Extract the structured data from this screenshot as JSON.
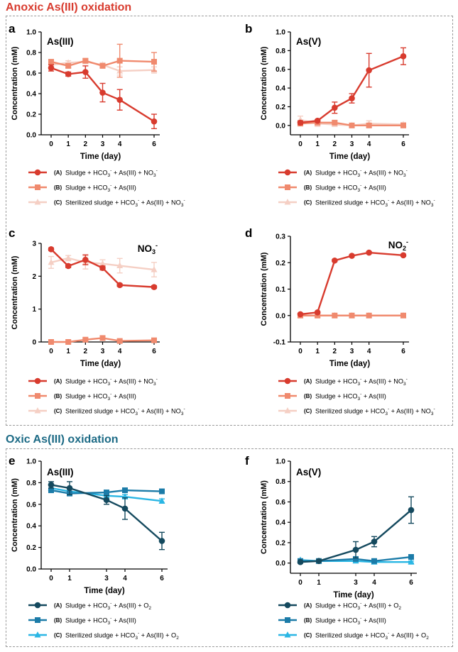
{
  "sections": [
    {
      "title": "Anoxic As(III) oxidation",
      "color": "#d83b2e"
    },
    {
      "title": "Oxic As(III) oxidation",
      "color": "#1c6a85"
    }
  ],
  "chart_data": [
    {
      "panel": "a",
      "label": "As(III)",
      "type": "line",
      "xlabel": "Time (day)",
      "ylabel": "Concentration (mM)",
      "x": [
        0,
        1,
        2,
        3,
        4,
        6
      ],
      "xticks": [
        "0",
        "1",
        "2",
        "3",
        "4",
        "6"
      ],
      "ylim": [
        0,
        1.0
      ],
      "yticks": [
        "0.0",
        "0.2",
        "0.4",
        "0.6",
        "0.8",
        "1.0"
      ],
      "ytick_values": [
        0,
        0.2,
        0.4,
        0.6,
        0.8,
        1.0
      ],
      "series": [
        {
          "name": "Sludge + HCO3- + As(III) + NO3-",
          "marker": "circle",
          "color": "#d83b2e",
          "values": [
            0.65,
            0.59,
            0.61,
            0.41,
            0.34,
            0.13
          ],
          "err": [
            0.03,
            0.02,
            0.06,
            0.09,
            0.1,
            0.07
          ]
        },
        {
          "name": "Sludge + HCO3- + As(III)",
          "marker": "square",
          "color": "#f08a6e",
          "values": [
            0.71,
            0.67,
            0.72,
            0.67,
            0.72,
            0.71
          ],
          "err": [
            0.02,
            0.02,
            0.02,
            0.02,
            0.16,
            0.09
          ]
        },
        {
          "name": "Sterilized sludge + HCO3- + As(III) + NO3-",
          "marker": "triangle",
          "color": "#f5cfc4",
          "values": [
            0.68,
            0.7,
            0.71,
            0.68,
            0.62,
            0.63
          ],
          "err": [
            0.02,
            0.02,
            0.02,
            0.02,
            0.04,
            0.03
          ]
        }
      ]
    },
    {
      "panel": "b",
      "label": "As(V)",
      "type": "line",
      "xlabel": "Time (day)",
      "ylabel": "Concentration (mM)",
      "x": [
        0,
        1,
        2,
        3,
        4,
        6
      ],
      "xticks": [
        "0",
        "1",
        "2",
        "3",
        "4",
        "6"
      ],
      "ylim": [
        -0.1,
        1.0
      ],
      "yticks": [
        "0.0",
        "0.2",
        "0.4",
        "0.6",
        "0.8",
        "1.0"
      ],
      "ytick_values": [
        0,
        0.2,
        0.4,
        0.6,
        0.8,
        1.0
      ],
      "series": [
        {
          "name": "Sludge + HCO3- + As(III) + NO3-",
          "marker": "circle",
          "color": "#d83b2e",
          "values": [
            0.03,
            0.05,
            0.19,
            0.29,
            0.59,
            0.74
          ],
          "err": [
            0.02,
            0.01,
            0.06,
            0.05,
            0.18,
            0.09
          ]
        },
        {
          "name": "Sludge + HCO3- + As(III)",
          "marker": "square",
          "color": "#f08a6e",
          "values": [
            0.02,
            0.03,
            0.03,
            0.0,
            0.0,
            0.0
          ],
          "err": [
            0.02,
            0.02,
            0.02,
            0.01,
            0.02,
            0.02
          ]
        },
        {
          "name": "Sterilized sludge + HCO3- + As(III) + NO3-",
          "marker": "triangle",
          "color": "#f5cfc4",
          "values": [
            0.06,
            0.02,
            0.01,
            0.0,
            0.02,
            0.01
          ],
          "err": [
            0.04,
            0.03,
            0.02,
            0.02,
            0.03,
            0.02
          ]
        }
      ]
    },
    {
      "panel": "c",
      "label": "NO3-",
      "type": "line",
      "xlabel": "Time (day)",
      "ylabel": "Concentration (mM)",
      "x": [
        0,
        1,
        2,
        3,
        4,
        6
      ],
      "xticks": [
        "0",
        "1",
        "2",
        "3",
        "4",
        "6"
      ],
      "ylim": [
        0,
        3.0
      ],
      "yticks": [
        "0",
        "1",
        "2",
        "3"
      ],
      "ytick_values": [
        0,
        1,
        2,
        3
      ],
      "series": [
        {
          "name": "Sludge + HCO3- + As(III) + NO3-",
          "marker": "circle",
          "color": "#d83b2e",
          "values": [
            2.82,
            2.31,
            2.5,
            2.25,
            1.73,
            1.67
          ],
          "err": [
            0.04,
            0.05,
            0.15,
            0.06,
            0.04,
            0.04
          ]
        },
        {
          "name": "Sludge + HCO3- + As(III)",
          "marker": "square",
          "color": "#f08a6e",
          "values": [
            0.0,
            0.0,
            0.07,
            0.12,
            0.03,
            0.05
          ],
          "err": [
            0.02,
            0.02,
            0.04,
            0.06,
            0.03,
            0.03
          ]
        },
        {
          "name": "Sterilized sludge + HCO3- + As(III) + NO3-",
          "marker": "triangle",
          "color": "#f5cfc4",
          "values": [
            2.42,
            2.55,
            2.42,
            2.38,
            2.32,
            2.2
          ],
          "err": [
            0.18,
            0.08,
            0.2,
            0.12,
            0.22,
            0.22
          ]
        }
      ]
    },
    {
      "panel": "d",
      "label": "NO2-",
      "type": "line",
      "xlabel": "Time (day)",
      "ylabel": "Concentration (mM)",
      "x": [
        0,
        1,
        2,
        3,
        4,
        6
      ],
      "xticks": [
        "0",
        "1",
        "2",
        "3",
        "4",
        "6"
      ],
      "ylim": [
        -0.1,
        0.3
      ],
      "yticks": [
        "-0.1",
        "0.0",
        "0.1",
        "0.2",
        "0.3"
      ],
      "ytick_values": [
        -0.1,
        0,
        0.1,
        0.2,
        0.3
      ],
      "series": [
        {
          "name": "Sludge + HCO3- + As(III) + NO3-",
          "marker": "circle",
          "color": "#d83b2e",
          "values": [
            0.005,
            0.012,
            0.208,
            0.226,
            0.238,
            0.228
          ],
          "err": [
            0.003,
            0.003,
            0.004,
            0.004,
            0.004,
            0.004
          ]
        },
        {
          "name": "Sludge + HCO3- + As(III)",
          "marker": "square",
          "color": "#f08a6e",
          "values": [
            0.0,
            0.0,
            0.0,
            0.0,
            0.0,
            0.0
          ],
          "err": [
            0.002,
            0.002,
            0.002,
            0.002,
            0.002,
            0.002
          ]
        },
        {
          "name": "Sterilized sludge + HCO3- + As(III) + NO3-",
          "marker": "triangle",
          "color": "#f5cfc4",
          "values": [
            0.0,
            0.0,
            0.0,
            0.0,
            0.0,
            0.0
          ],
          "err": [
            0.002,
            0.002,
            0.002,
            0.002,
            0.002,
            0.002
          ]
        }
      ]
    },
    {
      "panel": "e",
      "label": "As(III)",
      "type": "line",
      "xlabel": "Time (day)",
      "ylabel": "Concentration (mM)",
      "x": [
        0,
        1,
        3,
        4,
        6
      ],
      "xticks": [
        "0",
        "1",
        "3",
        "4",
        "6"
      ],
      "ylim": [
        0,
        1.0
      ],
      "yticks": [
        "0.0",
        "0.2",
        "0.4",
        "0.6",
        "0.8",
        "1.0"
      ],
      "ytick_values": [
        0,
        0.2,
        0.4,
        0.6,
        0.8,
        1.0
      ],
      "series": [
        {
          "name": "Sludge + HCO3- + As(III) + O2",
          "marker": "circle",
          "color": "#14495e",
          "values": [
            0.78,
            0.75,
            0.64,
            0.56,
            0.26
          ],
          "err": [
            0.03,
            0.06,
            0.04,
            0.1,
            0.08
          ]
        },
        {
          "name": "Sludge + HCO3- + As(III)",
          "marker": "square",
          "color": "#1b7ba8",
          "values": [
            0.73,
            0.7,
            0.71,
            0.73,
            0.72
          ],
          "err": [
            0.02,
            0.02,
            0.02,
            0.02,
            0.02
          ]
        },
        {
          "name": "Sterilized sludge + HCO3- + As(III) + O2",
          "marker": "triangle",
          "color": "#2ab6e4",
          "values": [
            0.75,
            0.72,
            0.68,
            0.67,
            0.63
          ],
          "err": [
            0.02,
            0.02,
            0.02,
            0.02,
            0.02
          ]
        }
      ]
    },
    {
      "panel": "f",
      "label": "As(V)",
      "type": "line",
      "xlabel": "Time (day)",
      "ylabel": "Concentration (mM)",
      "x": [
        0,
        1,
        3,
        4,
        6
      ],
      "xticks": [
        "0",
        "1",
        "3",
        "4",
        "6"
      ],
      "ylim": [
        -0.1,
        1.0
      ],
      "yticks": [
        "0.0",
        "0.2",
        "0.4",
        "0.6",
        "0.8",
        "1.0"
      ],
      "ytick_values": [
        0,
        0.2,
        0.4,
        0.6,
        0.8,
        1.0
      ],
      "series": [
        {
          "name": "Sludge + HCO3- + As(III) + O2",
          "marker": "circle",
          "color": "#14495e",
          "values": [
            0.01,
            0.02,
            0.13,
            0.21,
            0.52
          ],
          "err": [
            0.01,
            0.01,
            0.08,
            0.05,
            0.13
          ]
        },
        {
          "name": "Sludge + HCO3- + As(III)",
          "marker": "square",
          "color": "#1b7ba8",
          "values": [
            0.02,
            0.02,
            0.04,
            0.02,
            0.06
          ],
          "err": [
            0.01,
            0.01,
            0.02,
            0.01,
            0.02
          ]
        },
        {
          "name": "Sterilized sludge + HCO3- + As(III) + O2",
          "marker": "triangle",
          "color": "#2ab6e4",
          "values": [
            0.03,
            0.02,
            0.02,
            0.01,
            0.01
          ],
          "err": [
            0.01,
            0.01,
            0.01,
            0.01,
            0.01
          ]
        }
      ]
    }
  ],
  "legends": {
    "anoxic": [
      {
        "tag": "(A)",
        "parts": [
          "Sludge + HCO",
          "3",
          "-",
          " + As(III) + NO",
          "3",
          "-"
        ]
      },
      {
        "tag": "(B)",
        "parts": [
          "Sludge + HCO",
          "3",
          "-",
          " + As(III)",
          "",
          ""
        ]
      },
      {
        "tag": "(C)",
        "parts": [
          "Sterilized sludge + HCO",
          "3",
          "-",
          " + As(III) + NO",
          "3",
          "-"
        ]
      }
    ],
    "oxic": [
      {
        "tag": "(A)",
        "parts": [
          "Sludge + HCO",
          "3",
          "-",
          " + As(III) + O",
          "2",
          ""
        ]
      },
      {
        "tag": "(B)",
        "parts": [
          "Sludge + HCO",
          "3",
          "-",
          " + As(III)",
          "",
          ""
        ]
      },
      {
        "tag": "(C)",
        "parts": [
          "Sterilized sludge + HCO",
          "3",
          "-",
          " + As(III) + O",
          "2",
          ""
        ]
      }
    ]
  },
  "panel_labels": {
    "a": {
      "main": "As(III)",
      "sub": "",
      "sup": ""
    },
    "b": {
      "main": "As(V)",
      "sub": "",
      "sup": ""
    },
    "c": {
      "main": "NO",
      "sub": "3",
      "sup": "-"
    },
    "d": {
      "main": "NO",
      "sub": "2",
      "sup": "-"
    },
    "e": {
      "main": "As(III)",
      "sub": "",
      "sup": ""
    },
    "f": {
      "main": "As(V)",
      "sub": "",
      "sup": ""
    }
  }
}
